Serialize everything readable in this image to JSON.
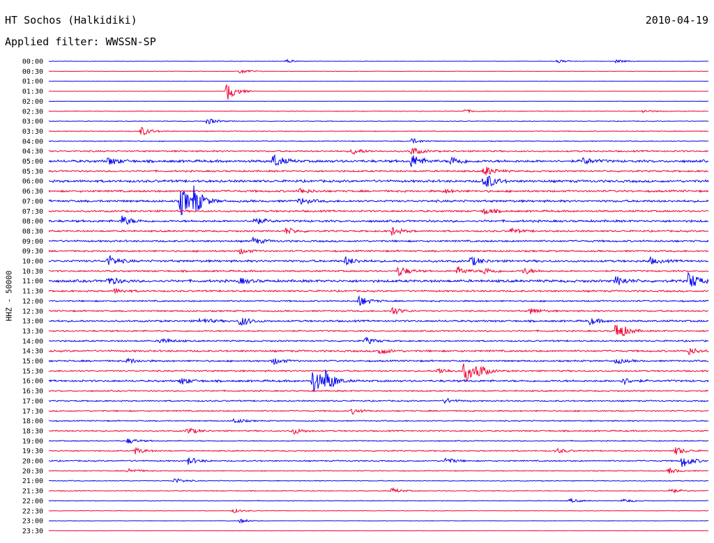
{
  "header": {
    "station": "HT Sochos (Halkidiki)",
    "date": "2010-04-19",
    "filter": "Applied filter: WWSSN-SP"
  },
  "channel_label": "HHZ - 50000",
  "colors": {
    "odd_trace": "#0000ee",
    "even_trace": "#ee0033",
    "text": "#000000"
  },
  "rows": [
    {
      "time": "00:00",
      "level": 0.25,
      "events": [
        [
          0.36,
          2.5
        ],
        [
          0.77,
          3
        ],
        [
          0.86,
          2.5
        ]
      ]
    },
    {
      "time": "00:30",
      "level": 0.25,
      "events": [
        [
          0.29,
          4
        ]
      ]
    },
    {
      "time": "01:00",
      "level": 0.15,
      "events": []
    },
    {
      "time": "01:30",
      "level": 0.2,
      "events": [
        [
          0.27,
          14
        ]
      ]
    },
    {
      "time": "02:00",
      "level": 0.15,
      "events": []
    },
    {
      "time": "02:30",
      "level": 0.4,
      "events": [
        [
          0.63,
          2.5
        ],
        [
          0.9,
          2.5
        ]
      ]
    },
    {
      "time": "03:00",
      "level": 0.4,
      "events": [
        [
          0.24,
          5
        ]
      ]
    },
    {
      "time": "03:30",
      "level": 0.5,
      "events": [
        [
          0.14,
          7
        ]
      ]
    },
    {
      "time": "04:00",
      "level": 0.5,
      "events": [
        [
          0.55,
          4
        ]
      ]
    },
    {
      "time": "04:30",
      "level": 0.9,
      "events": [
        [
          0.46,
          5
        ],
        [
          0.55,
          6
        ]
      ]
    },
    {
      "time": "05:00",
      "level": 1.5,
      "events": [
        [
          0.09,
          6
        ],
        [
          0.34,
          10
        ],
        [
          0.55,
          10
        ],
        [
          0.61,
          7
        ],
        [
          0.81,
          5
        ]
      ]
    },
    {
      "time": "05:30",
      "level": 1.0,
      "events": [
        [
          0.66,
          8
        ]
      ]
    },
    {
      "time": "06:00",
      "level": 1.4,
      "events": [
        [
          0.66,
          14
        ]
      ]
    },
    {
      "time": "06:30",
      "level": 1.2,
      "events": [
        [
          0.38,
          4
        ],
        [
          0.6,
          3
        ]
      ]
    },
    {
      "time": "07:00",
      "level": 1.3,
      "events": [
        [
          0.2,
          22
        ],
        [
          0.22,
          18
        ],
        [
          0.38,
          5
        ]
      ]
    },
    {
      "time": "07:30",
      "level": 1.1,
      "events": [
        [
          0.66,
          5
        ]
      ]
    },
    {
      "time": "08:00",
      "level": 1.3,
      "events": [
        [
          0.11,
          8
        ],
        [
          0.31,
          6
        ]
      ]
    },
    {
      "time": "08:30",
      "level": 1.0,
      "events": [
        [
          0.36,
          5
        ],
        [
          0.52,
          6
        ],
        [
          0.7,
          4
        ]
      ]
    },
    {
      "time": "09:00",
      "level": 1.1,
      "events": [
        [
          0.31,
          5
        ]
      ]
    },
    {
      "time": "09:30",
      "level": 1.0,
      "events": [
        [
          0.29,
          4
        ]
      ]
    },
    {
      "time": "10:00",
      "level": 1.3,
      "events": [
        [
          0.09,
          8
        ],
        [
          0.45,
          6
        ],
        [
          0.64,
          7
        ],
        [
          0.91,
          5
        ]
      ]
    },
    {
      "time": "10:30",
      "level": 1.0,
      "events": [
        [
          0.53,
          8
        ],
        [
          0.62,
          6
        ],
        [
          0.66,
          5
        ],
        [
          0.72,
          5
        ]
      ]
    },
    {
      "time": "11:00",
      "level": 1.5,
      "events": [
        [
          0.09,
          6
        ],
        [
          0.29,
          4
        ],
        [
          0.86,
          7
        ],
        [
          0.97,
          14
        ]
      ]
    },
    {
      "time": "11:30",
      "level": 1.0,
      "events": [
        [
          0.1,
          4
        ]
      ]
    },
    {
      "time": "12:00",
      "level": 0.9,
      "events": [
        [
          0.47,
          8
        ]
      ]
    },
    {
      "time": "12:30",
      "level": 0.9,
      "events": [
        [
          0.52,
          6
        ],
        [
          0.73,
          5
        ]
      ]
    },
    {
      "time": "13:00",
      "level": 1.1,
      "events": [
        [
          0.23,
          5
        ],
        [
          0.29,
          8
        ],
        [
          0.82,
          5
        ]
      ]
    },
    {
      "time": "13:30",
      "level": 0.9,
      "events": [
        [
          0.86,
          16
        ]
      ]
    },
    {
      "time": "14:00",
      "level": 0.9,
      "events": [
        [
          0.17,
          5
        ],
        [
          0.48,
          5
        ]
      ]
    },
    {
      "time": "14:30",
      "level": 1.1,
      "events": [
        [
          0.5,
          6
        ],
        [
          0.97,
          5
        ]
      ]
    },
    {
      "time": "15:00",
      "level": 1.0,
      "events": [
        [
          0.12,
          4
        ],
        [
          0.34,
          5
        ],
        [
          0.86,
          4
        ]
      ]
    },
    {
      "time": "15:30",
      "level": 0.9,
      "events": [
        [
          0.59,
          5
        ],
        [
          0.63,
          18
        ],
        [
          0.65,
          8
        ]
      ]
    },
    {
      "time": "16:00",
      "level": 1.2,
      "events": [
        [
          0.4,
          20
        ],
        [
          0.42,
          14
        ],
        [
          0.2,
          5
        ],
        [
          0.87,
          5
        ]
      ]
    },
    {
      "time": "16:30",
      "level": 0.8,
      "events": []
    },
    {
      "time": "17:00",
      "level": 0.8,
      "events": [
        [
          0.6,
          4
        ]
      ]
    },
    {
      "time": "17:30",
      "level": 0.8,
      "events": [
        [
          0.46,
          4
        ]
      ]
    },
    {
      "time": "18:00",
      "level": 0.7,
      "events": [
        [
          0.28,
          4
        ]
      ]
    },
    {
      "time": "18:30",
      "level": 0.8,
      "events": [
        [
          0.21,
          5
        ],
        [
          0.37,
          5
        ]
      ]
    },
    {
      "time": "19:00",
      "level": 0.6,
      "events": [
        [
          0.12,
          4
        ]
      ]
    },
    {
      "time": "19:30",
      "level": 0.7,
      "events": [
        [
          0.13,
          5
        ],
        [
          0.77,
          4
        ],
        [
          0.95,
          6
        ]
      ]
    },
    {
      "time": "20:00",
      "level": 0.8,
      "events": [
        [
          0.21,
          6
        ],
        [
          0.6,
          5
        ],
        [
          0.96,
          10
        ]
      ]
    },
    {
      "time": "20:30",
      "level": 0.5,
      "events": [
        [
          0.12,
          4
        ],
        [
          0.94,
          4
        ]
      ]
    },
    {
      "time": "21:00",
      "level": 0.5,
      "events": [
        [
          0.19,
          4
        ]
      ]
    },
    {
      "time": "21:30",
      "level": 0.5,
      "events": [
        [
          0.52,
          4
        ],
        [
          0.94,
          4
        ]
      ]
    },
    {
      "time": "22:00",
      "level": 0.4,
      "events": [
        [
          0.79,
          3
        ],
        [
          0.87,
          3
        ]
      ]
    },
    {
      "time": "22:30",
      "level": 0.3,
      "events": [
        [
          0.28,
          3
        ]
      ]
    },
    {
      "time": "23:00",
      "level": 0.3,
      "events": [
        [
          0.29,
          3
        ]
      ]
    },
    {
      "time": "23:30",
      "level": 0.25,
      "events": []
    }
  ]
}
